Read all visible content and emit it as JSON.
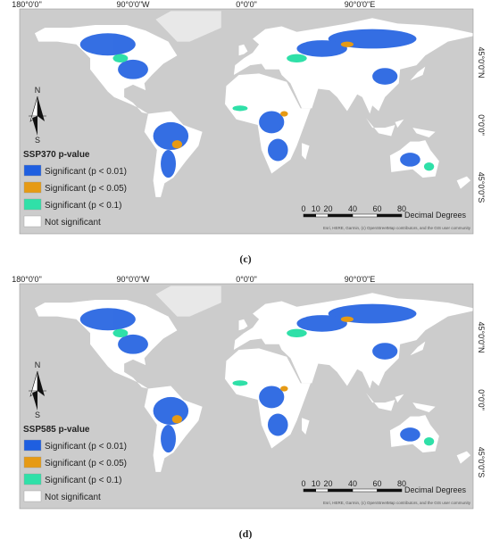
{
  "panels": [
    {
      "lon_labels": [
        "180°0'0\"",
        "90°0'0\"W",
        "0°0'0\"",
        "90°0'0\"E"
      ],
      "lat_labels": [
        "45°0'0\"N",
        "0°0'0\"",
        "45°0'0\"S"
      ],
      "north": "N",
      "south": "S",
      "legend": {
        "title": "SSP370 p-value",
        "items": [
          {
            "label": "Significant (p < 0.01)",
            "color": "#1f5fe0"
          },
          {
            "label": "Significant (p < 0.05)",
            "color": "#e69a14"
          },
          {
            "label": "Significant (p < 0.1)",
            "color": "#2fe0a8"
          },
          {
            "label": "Not significant",
            "color": "#ffffff"
          }
        ]
      },
      "scale": {
        "ticks": [
          "0",
          "10",
          "20",
          "40",
          "60",
          "80"
        ],
        "unit": "Decimal Degrees"
      },
      "attribution": "Esri, HERE, Garmin, (c) OpenStreetMap contributors, and the GIS user community",
      "caption": "(c)"
    },
    {
      "lon_labels": [
        "180°0'0\"",
        "90°0'0\"W",
        "0°0'0\"",
        "90°0'0\"E"
      ],
      "lat_labels": [
        "45°0'0\"N",
        "0°0'0\"",
        "45°0'0\"S"
      ],
      "north": "N",
      "south": "S",
      "legend": {
        "title": "SSP585 p-value",
        "items": [
          {
            "label": "Significant (p < 0.01)",
            "color": "#1f5fe0"
          },
          {
            "label": "Significant (p < 0.05)",
            "color": "#e69a14"
          },
          {
            "label": "Significant (p < 0.1)",
            "color": "#2fe0a8"
          },
          {
            "label": "Not significant",
            "color": "#ffffff"
          }
        ]
      },
      "scale": {
        "ticks": [
          "0",
          "10",
          "20",
          "40",
          "60",
          "80"
        ],
        "unit": "Decimal Degrees"
      },
      "attribution": "Esri, HERE, Garmin, (c) OpenStreetMap contributors, and the GIS user community",
      "caption": "(d)"
    }
  ]
}
